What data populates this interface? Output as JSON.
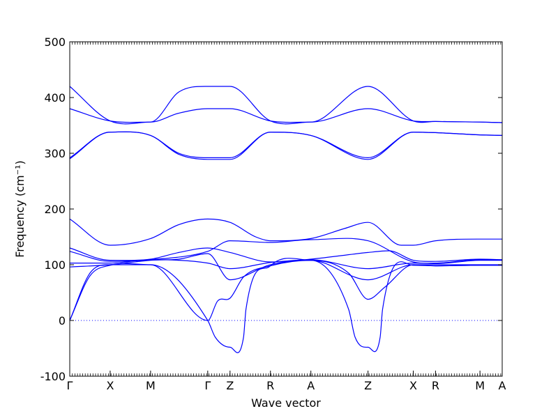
{
  "chart_data": {
    "type": "line",
    "xlabel": "Wave vector",
    "ylabel": "Frequency (cm⁻¹)",
    "ylim": [
      -100,
      500
    ],
    "yticks": [
      -100,
      0,
      100,
      200,
      300,
      400,
      500
    ],
    "zero_line": true,
    "grid": false,
    "colors": {
      "bands": "#0000ff",
      "zero_line": "#0000ff",
      "axes": "#000000"
    },
    "x_kpoints": [
      {
        "label": "Γ",
        "x": 0.0
      },
      {
        "label": "X",
        "x": 0.5
      },
      {
        "label": "M",
        "x": 1.0
      },
      {
        "label": "Γ",
        "x": 1.707
      },
      {
        "label": "Z",
        "x": 1.983
      },
      {
        "label": "R",
        "x": 2.483
      },
      {
        "label": "A",
        "x": 2.983
      },
      {
        "label": "Z",
        "x": 3.69
      },
      {
        "label": "X",
        "x": 4.25
      },
      {
        "label": "R",
        "x": 4.525
      },
      {
        "label": "M",
        "x": 5.075
      },
      {
        "label": "A",
        "x": 5.35
      }
    ],
    "xlim": [
      0,
      5.35
    ],
    "bands": [
      {
        "x": [
          0,
          0.5,
          1.0,
          1.35,
          1.707,
          1.983,
          2.483,
          2.983,
          3.69,
          4.25,
          4.525,
          5.075,
          5.35
        ],
        "y": [
          420,
          358,
          356,
          410,
          420,
          420,
          358,
          356,
          420,
          358,
          357,
          356,
          355
        ]
      },
      {
        "x": [
          0,
          0.5,
          1.0,
          1.35,
          1.707,
          1.983,
          2.483,
          2.983,
          3.69,
          4.25,
          4.525,
          5.075,
          5.35
        ],
        "y": [
          380,
          358,
          356,
          372,
          380,
          380,
          358,
          356,
          380,
          358,
          357,
          356,
          355
        ]
      },
      {
        "x": [
          0,
          0.5,
          1.0,
          1.35,
          1.707,
          1.983,
          2.483,
          2.983,
          3.69,
          4.25,
          4.525,
          5.075,
          5.35
        ],
        "y": [
          292,
          338,
          332,
          300,
          292,
          292,
          338,
          332,
          292,
          338,
          337,
          333,
          332
        ]
      },
      {
        "x": [
          0,
          0.5,
          1.0,
          1.35,
          1.707,
          1.983,
          2.483,
          2.983,
          3.69,
          4.25,
          4.525,
          5.075,
          5.35
        ],
        "y": [
          290,
          338,
          332,
          298,
          289,
          289,
          338,
          332,
          289,
          338,
          337,
          333,
          332
        ]
      },
      {
        "x": [
          0,
          0.5,
          1.0,
          1.35,
          1.707,
          1.983,
          2.3,
          2.483,
          2.983,
          3.4,
          3.69,
          4.1,
          4.25,
          4.525,
          5.075,
          5.35
        ],
        "y": [
          182,
          135,
          147,
          172,
          182,
          176,
          150,
          143,
          147,
          165,
          176,
          135,
          135,
          143,
          146,
          146
        ]
      },
      {
        "x": [
          0,
          0.5,
          1.0,
          1.35,
          1.707,
          1.983,
          2.483,
          2.983,
          3.69,
          3.95,
          4.25,
          4.525,
          5.075,
          5.35
        ],
        "y": [
          130,
          108,
          110,
          122,
          130,
          122,
          105,
          110,
          122,
          125,
          108,
          106,
          110,
          109
        ]
      },
      {
        "x": [
          0,
          0.5,
          1.0,
          1.707,
          1.983,
          2.483,
          2.983,
          3.69,
          4.25,
          4.525,
          5.075,
          5.35
        ],
        "y": [
          124,
          106,
          109,
          124,
          143,
          140,
          145,
          143,
          105,
          103,
          109,
          109
        ]
      },
      {
        "x": [
          0,
          0.5,
          1.0,
          1.707,
          1.983,
          2.483,
          2.983,
          3.69,
          4.25,
          4.525,
          5.075,
          5.35
        ],
        "y": [
          103,
          103,
          109,
          103,
          93,
          104,
          109,
          93,
          103,
          102,
          108,
          108
        ]
      },
      {
        "x": [
          0,
          0.5,
          1.0,
          1.35,
          1.707,
          1.983,
          2.483,
          2.983,
          3.69,
          4.25,
          4.525,
          5.075,
          5.35
        ],
        "y": [
          96,
          100,
          108,
          110,
          120,
          73,
          100,
          108,
          73,
          100,
          100,
          100,
          100
        ]
      },
      {
        "x": [
          0,
          0.25,
          0.5,
          1.0,
          1.707,
          1.83,
          1.983,
          2.15,
          2.483,
          2.983,
          3.45,
          3.69,
          3.9,
          4.25,
          4.525,
          5.075,
          5.35
        ],
        "y": [
          0,
          85,
          100,
          100,
          0,
          35,
          40,
          78,
          98,
          108,
          85,
          38,
          60,
          100,
          98,
          99,
          99
        ]
      },
      {
        "x": [
          0,
          0.25,
          0.5,
          1.0,
          1.707,
          1.8,
          1.983,
          2.15,
          2.18,
          2.483,
          2.983,
          3.45,
          3.53,
          3.69,
          3.84,
          3.87,
          4.25,
          4.525,
          5.075,
          5.35
        ],
        "y": [
          0,
          80,
          99,
          100,
          0,
          -30,
          -48,
          -30,
          20,
          98,
          108,
          20,
          -30,
          -48,
          -30,
          20,
          99,
          98,
          99,
          99
        ]
      }
    ]
  }
}
